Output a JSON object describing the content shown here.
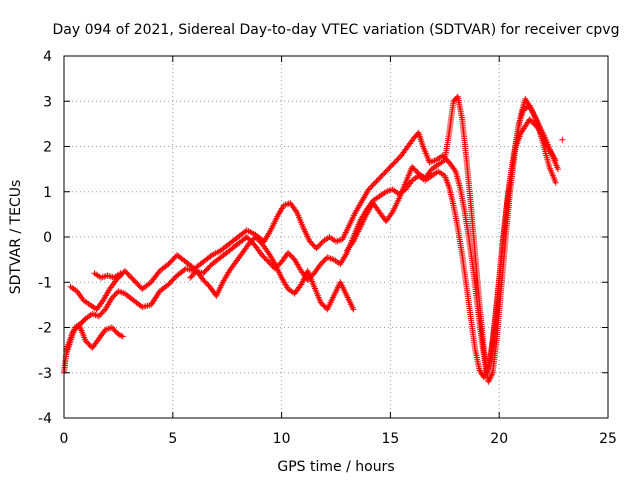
{
  "chart_data": {
    "type": "scatter",
    "title": "Day 094 of 2021, Sidereal Day-to-day VTEC variation (SDTVAR) for receiver cpvg",
    "xlabel": "GPS time / hours",
    "ylabel": "SDTVAR / TECUs",
    "xlim": [
      0,
      25
    ],
    "ylim": [
      -4,
      4
    ],
    "xticks": [
      "0",
      "5",
      "10",
      "15",
      "20",
      "25"
    ],
    "yticks": [
      "-4",
      "-3",
      "-2",
      "-1",
      "0",
      "1",
      "2",
      "3",
      "4"
    ],
    "grid": true,
    "marker": "plus",
    "color": "#ff0000",
    "series": [
      {
        "points": [
          [
            0.0,
            -3.0
          ],
          [
            0.1,
            -2.6
          ],
          [
            0.3,
            -2.3
          ],
          [
            0.5,
            -2.0
          ],
          [
            0.8,
            -1.9
          ],
          [
            1.0,
            -1.8
          ],
          [
            1.3,
            -1.7
          ],
          [
            1.6,
            -1.75
          ],
          [
            1.9,
            -1.6
          ],
          [
            2.2,
            -1.35
          ],
          [
            2.5,
            -1.2
          ],
          [
            2.8,
            -1.25
          ],
          [
            3.2,
            -1.4
          ],
          [
            3.6,
            -1.55
          ],
          [
            4.0,
            -1.5
          ],
          [
            4.4,
            -1.2
          ],
          [
            4.8,
            -1.05
          ],
          [
            5.2,
            -0.85
          ],
          [
            5.6,
            -0.7
          ],
          [
            6.0,
            -0.75
          ],
          [
            6.4,
            -0.8
          ],
          [
            6.8,
            -0.6
          ],
          [
            7.2,
            -0.45
          ],
          [
            7.6,
            -0.3
          ],
          [
            8.0,
            -0.15
          ],
          [
            8.4,
            0.0
          ],
          [
            8.8,
            -0.2
          ],
          [
            9.1,
            -0.4
          ],
          [
            9.4,
            -0.55
          ],
          [
            9.7,
            -0.7
          ],
          [
            10.0,
            -0.55
          ],
          [
            10.3,
            -0.35
          ],
          [
            10.6,
            -0.5
          ],
          [
            10.9,
            -0.75
          ],
          [
            11.2,
            -0.95
          ],
          [
            11.5,
            -0.8
          ],
          [
            11.8,
            -0.6
          ],
          [
            12.1,
            -0.45
          ],
          [
            12.4,
            -0.5
          ],
          [
            12.7,
            -0.6
          ],
          [
            13.0,
            -0.35
          ],
          [
            13.3,
            0.0
          ],
          [
            13.6,
            0.35
          ],
          [
            13.9,
            0.6
          ],
          [
            14.2,
            0.8
          ],
          [
            14.5,
            0.9
          ],
          [
            14.8,
            1.0
          ],
          [
            15.1,
            1.05
          ],
          [
            15.4,
            0.95
          ],
          [
            15.7,
            1.05
          ],
          [
            16.0,
            1.25
          ],
          [
            16.3,
            1.35
          ],
          [
            16.6,
            1.25
          ],
          [
            16.9,
            1.35
          ],
          [
            17.2,
            1.45
          ],
          [
            17.5,
            1.35
          ],
          [
            17.7,
            1.1
          ],
          [
            17.9,
            0.7
          ],
          [
            18.1,
            0.2
          ],
          [
            18.3,
            -0.4
          ],
          [
            18.5,
            -1.1
          ],
          [
            18.7,
            -1.8
          ],
          [
            18.9,
            -2.5
          ],
          [
            19.1,
            -2.95
          ],
          [
            19.3,
            -3.1
          ],
          [
            19.5,
            -2.9
          ],
          [
            19.7,
            -2.3
          ],
          [
            19.9,
            -1.4
          ],
          [
            20.1,
            -0.4
          ],
          [
            20.3,
            0.5
          ],
          [
            20.5,
            1.3
          ],
          [
            20.7,
            1.9
          ],
          [
            21.0,
            2.3
          ],
          [
            21.4,
            2.6
          ],
          [
            21.8,
            2.4
          ],
          [
            22.2,
            2.0
          ],
          [
            22.6,
            1.7
          ]
        ]
      },
      {
        "points": [
          [
            0.1,
            -2.5
          ],
          [
            0.4,
            -2.1
          ],
          [
            0.7,
            -1.95
          ],
          [
            1.0,
            -2.3
          ],
          [
            1.3,
            -2.45
          ],
          [
            1.6,
            -2.25
          ],
          [
            1.9,
            -2.05
          ],
          [
            2.2,
            -2.0
          ],
          [
            2.5,
            -2.15
          ],
          [
            2.7,
            -2.2
          ]
        ]
      },
      {
        "points": [
          [
            0.3,
            -1.1
          ],
          [
            0.6,
            -1.2
          ],
          [
            0.9,
            -1.4
          ],
          [
            1.2,
            -1.5
          ],
          [
            1.5,
            -1.6
          ],
          [
            1.8,
            -1.4
          ],
          [
            2.1,
            -1.15
          ],
          [
            2.4,
            -0.95
          ],
          [
            2.8,
            -0.75
          ],
          [
            3.2,
            -0.95
          ],
          [
            3.6,
            -1.15
          ],
          [
            4.0,
            -1.0
          ],
          [
            4.4,
            -0.75
          ],
          [
            4.8,
            -0.6
          ],
          [
            5.2,
            -0.4
          ],
          [
            5.6,
            -0.55
          ],
          [
            6.0,
            -0.7
          ],
          [
            6.4,
            -0.55
          ],
          [
            6.8,
            -0.4
          ],
          [
            7.2,
            -0.3
          ],
          [
            7.6,
            -0.15
          ],
          [
            8.0,
            0.0
          ],
          [
            8.4,
            0.15
          ],
          [
            8.8,
            0.05
          ],
          [
            9.2,
            -0.1
          ],
          [
            9.5,
            0.15
          ],
          [
            9.8,
            0.45
          ],
          [
            10.1,
            0.7
          ],
          [
            10.4,
            0.75
          ],
          [
            10.7,
            0.55
          ],
          [
            11.0,
            0.2
          ],
          [
            11.3,
            -0.1
          ],
          [
            11.6,
            -0.25
          ],
          [
            11.9,
            -0.1
          ],
          [
            12.2,
            0.0
          ],
          [
            12.5,
            -0.1
          ],
          [
            12.8,
            -0.05
          ],
          [
            13.1,
            0.25
          ],
          [
            13.4,
            0.55
          ],
          [
            13.7,
            0.8
          ],
          [
            14.0,
            1.05
          ],
          [
            14.3,
            1.2
          ],
          [
            14.6,
            1.35
          ],
          [
            14.9,
            1.5
          ],
          [
            15.2,
            1.65
          ],
          [
            15.5,
            1.8
          ],
          [
            15.8,
            2.0
          ],
          [
            16.1,
            2.2
          ],
          [
            16.3,
            2.3
          ],
          [
            16.5,
            2.0
          ],
          [
            16.8,
            1.65
          ],
          [
            17.1,
            1.7
          ],
          [
            17.4,
            1.8
          ],
          [
            17.7,
            1.65
          ],
          [
            18.0,
            1.45
          ],
          [
            18.2,
            1.1
          ],
          [
            18.4,
            0.6
          ],
          [
            18.6,
            0.0
          ],
          [
            18.8,
            -0.7
          ],
          [
            19.0,
            -1.5
          ],
          [
            19.2,
            -2.3
          ],
          [
            19.4,
            -2.95
          ],
          [
            19.6,
            -2.7
          ],
          [
            19.8,
            -1.9
          ],
          [
            20.0,
            -1.0
          ],
          [
            20.2,
            0.0
          ],
          [
            20.4,
            0.9
          ],
          [
            20.6,
            1.6
          ],
          [
            20.8,
            2.2
          ],
          [
            21.0,
            2.7
          ],
          [
            21.2,
            3.05
          ],
          [
            21.5,
            2.8
          ],
          [
            21.8,
            2.5
          ],
          [
            22.1,
            2.2
          ],
          [
            22.4,
            1.85
          ],
          [
            22.7,
            1.5
          ]
        ]
      },
      {
        "points": [
          [
            1.4,
            -0.8
          ],
          [
            1.7,
            -0.9
          ],
          [
            2.0,
            -0.85
          ],
          [
            2.3,
            -0.9
          ],
          [
            2.6,
            -0.8
          ]
        ]
      },
      {
        "points": [
          [
            5.8,
            -0.9
          ],
          [
            6.1,
            -0.75
          ],
          [
            6.4,
            -0.95
          ],
          [
            6.7,
            -1.1
          ],
          [
            7.0,
            -1.3
          ],
          [
            7.3,
            -1.0
          ],
          [
            7.6,
            -0.75
          ],
          [
            7.9,
            -0.55
          ],
          [
            8.2,
            -0.35
          ],
          [
            8.5,
            -0.15
          ],
          [
            8.8,
            0.0
          ],
          [
            9.1,
            -0.15
          ],
          [
            9.4,
            -0.35
          ],
          [
            9.7,
            -0.6
          ],
          [
            10.0,
            -0.9
          ],
          [
            10.3,
            -1.15
          ],
          [
            10.6,
            -1.25
          ],
          [
            10.9,
            -1.05
          ],
          [
            11.2,
            -0.75
          ],
          [
            11.5,
            -1.1
          ],
          [
            11.8,
            -1.45
          ],
          [
            12.1,
            -1.6
          ],
          [
            12.4,
            -1.3
          ],
          [
            12.7,
            -1.0
          ],
          [
            13.0,
            -1.3
          ],
          [
            13.3,
            -1.6
          ]
        ]
      },
      {
        "points": [
          [
            13.0,
            -0.3
          ],
          [
            13.3,
            -0.1
          ],
          [
            13.6,
            0.2
          ],
          [
            13.9,
            0.5
          ],
          [
            14.2,
            0.75
          ],
          [
            14.5,
            0.55
          ],
          [
            14.8,
            0.35
          ],
          [
            15.1,
            0.55
          ],
          [
            15.4,
            0.85
          ],
          [
            15.7,
            1.2
          ],
          [
            16.0,
            1.55
          ],
          [
            16.3,
            1.4
          ],
          [
            16.6,
            1.3
          ],
          [
            16.9,
            1.5
          ],
          [
            17.2,
            1.6
          ],
          [
            17.5,
            1.7
          ],
          [
            17.7,
            2.3
          ],
          [
            17.9,
            3.0
          ],
          [
            18.1,
            3.1
          ],
          [
            18.3,
            2.6
          ],
          [
            18.5,
            1.7
          ],
          [
            18.7,
            0.7
          ],
          [
            18.9,
            -0.4
          ],
          [
            19.1,
            -1.5
          ],
          [
            19.3,
            -2.5
          ],
          [
            19.5,
            -3.2
          ],
          [
            19.7,
            -3.0
          ],
          [
            19.9,
            -2.2
          ],
          [
            20.1,
            -1.1
          ],
          [
            20.3,
            0.0
          ],
          [
            20.5,
            1.0
          ],
          [
            20.7,
            1.8
          ],
          [
            20.9,
            2.5
          ],
          [
            21.1,
            2.8
          ],
          [
            21.4,
            2.9
          ],
          [
            21.7,
            2.6
          ],
          [
            22.0,
            2.1
          ],
          [
            22.3,
            1.55
          ],
          [
            22.6,
            1.2
          ]
        ]
      },
      {
        "points": [
          [
            22.9,
            2.15
          ]
        ]
      }
    ]
  }
}
